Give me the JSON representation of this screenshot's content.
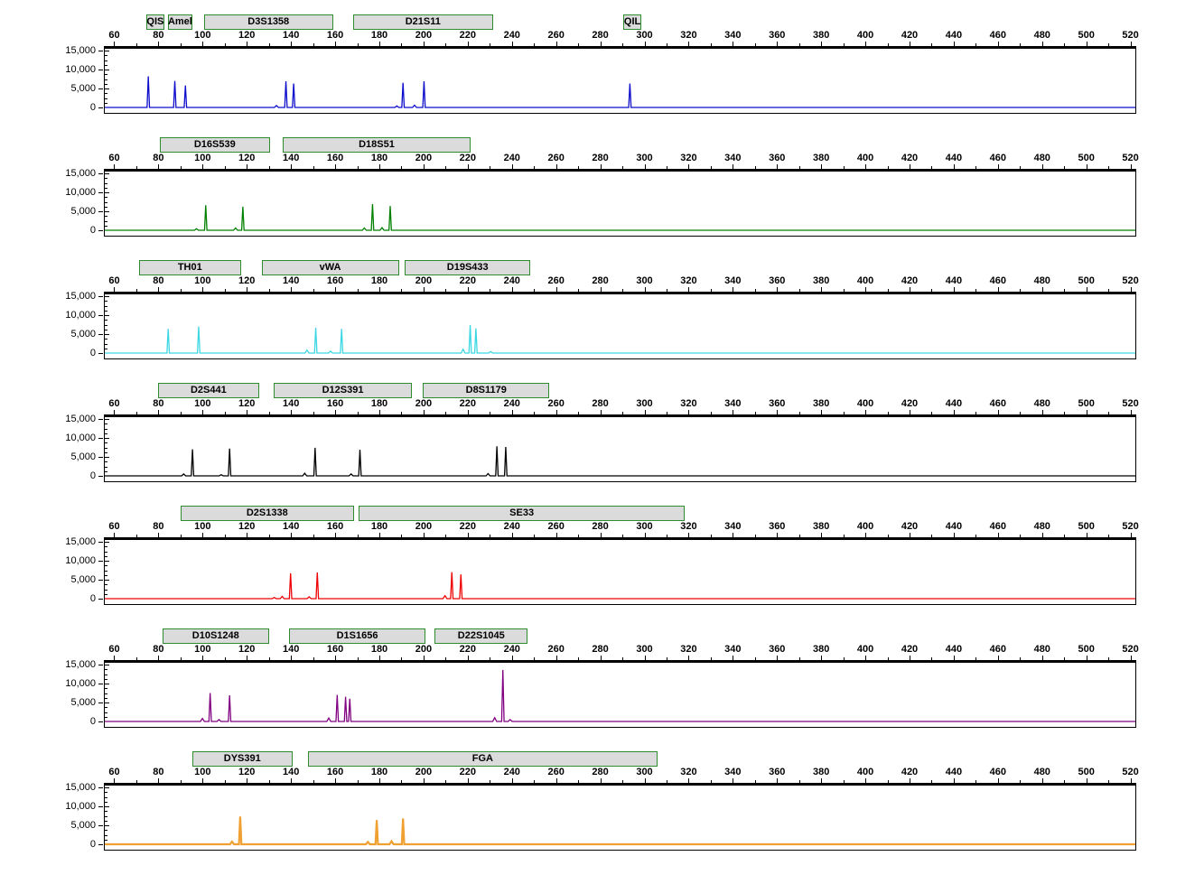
{
  "chart_data": {
    "type": "line",
    "subtype": "STR-electropherogram",
    "title": "",
    "grid": false,
    "x_axis": {
      "min": 55.3,
      "max": 521.8,
      "tick_values": [
        60,
        80,
        100,
        120,
        140,
        160,
        180,
        200,
        220,
        240,
        260,
        280,
        300,
        320,
        340,
        360,
        380,
        400,
        420,
        440,
        460,
        480,
        500,
        520
      ],
      "tick_labels": [
        "60",
        "80",
        "100",
        "120",
        "140",
        "160",
        "180",
        "200",
        "220",
        "240",
        "260",
        "280",
        "300",
        "320",
        "340",
        "360",
        "380",
        "400",
        "420",
        "440",
        "460",
        "480",
        "500",
        "520"
      ],
      "minor_tick_step": 10
    },
    "y_axis": {
      "min": 0,
      "max": 15000,
      "tick_values": [
        15000,
        10000,
        5000,
        0
      ],
      "tick_labels": [
        "15,000",
        "10,000",
        "5,000",
        "0"
      ],
      "minor_tick_step": 1250
    },
    "panels": [
      {
        "name": "blue-channel",
        "color": "#0d0dcb",
        "stroke_width": 1.3,
        "markers": [
          {
            "label": "QIS",
            "from": 74.5,
            "to": 81.8
          },
          {
            "label": "Amel",
            "from": 84.3,
            "to": 94.5
          },
          {
            "label": "D3S1358",
            "from": 100.6,
            "to": 158.2
          },
          {
            "label": "D21S11",
            "from": 168.0,
            "to": 230.7
          },
          {
            "label": "QIL",
            "from": 290.4,
            "to": 297.8
          }
        ],
        "peaks": [
          [
            75,
            8200
          ],
          [
            87,
            7000
          ],
          [
            91.8,
            5800
          ],
          [
            133,
            500
          ],
          [
            137.3,
            6900
          ],
          [
            140.8,
            6300
          ],
          [
            187.5,
            400
          ],
          [
            190.3,
            6500
          ],
          [
            195.5,
            600
          ],
          [
            199.8,
            6900
          ],
          [
            293,
            6300
          ]
        ]
      },
      {
        "name": "green-channel",
        "color": "#008000",
        "stroke_width": 1.3,
        "markers": [
          {
            "label": "D16S539",
            "from": 80.6,
            "to": 129.6
          },
          {
            "label": "D18S51",
            "from": 136.1,
            "to": 220.6
          }
        ],
        "peaks": [
          [
            96.8,
            400
          ],
          [
            101,
            6600
          ],
          [
            114.5,
            600
          ],
          [
            117.8,
            6200
          ],
          [
            172.8,
            600
          ],
          [
            176.5,
            6900
          ],
          [
            180.8,
            700
          ],
          [
            184.5,
            6400
          ]
        ]
      },
      {
        "name": "cyan-channel",
        "color": "#3bd7e3",
        "stroke_width": 1.3,
        "markers": [
          {
            "label": "TH01",
            "from": 71.2,
            "to": 116.5
          },
          {
            "label": "vWA",
            "from": 126.7,
            "to": 188.0
          },
          {
            "label": "D19S433",
            "from": 191.6,
            "to": 247.5
          }
        ],
        "peaks": [
          [
            84,
            6400
          ],
          [
            97.8,
            7000
          ],
          [
            146.8,
            800
          ],
          [
            150.8,
            6700
          ],
          [
            157.5,
            500
          ],
          [
            162.5,
            6400
          ],
          [
            217.5,
            1000
          ],
          [
            220.7,
            7400
          ],
          [
            223.3,
            6500
          ],
          [
            230,
            400
          ]
        ]
      },
      {
        "name": "black-channel",
        "color": "#000000",
        "stroke_width": 1.3,
        "markers": [
          {
            "label": "D2S441",
            "from": 79.8,
            "to": 124.7
          },
          {
            "label": "D12S391",
            "from": 132.0,
            "to": 194.1
          },
          {
            "label": "D8S1179",
            "from": 199.8,
            "to": 256.1
          }
        ],
        "peaks": [
          [
            91,
            500
          ],
          [
            95,
            7000
          ],
          [
            108,
            300
          ],
          [
            111.8,
            7200
          ],
          [
            145.8,
            700
          ],
          [
            150.5,
            7400
          ],
          [
            166.8,
            500
          ],
          [
            170.8,
            6900
          ],
          [
            228.8,
            600
          ],
          [
            232.8,
            7800
          ],
          [
            236.8,
            7600
          ]
        ]
      },
      {
        "name": "red-channel",
        "color": "#ee0000",
        "stroke_width": 1.3,
        "markers": [
          {
            "label": "D2S1338",
            "from": 90.0,
            "to": 167.6
          },
          {
            "label": "SE33",
            "from": 170.8,
            "to": 317.3
          }
        ],
        "peaks": [
          [
            132,
            300
          ],
          [
            135.6,
            600
          ],
          [
            139.4,
            6700
          ],
          [
            147.8,
            500
          ],
          [
            151.5,
            6900
          ],
          [
            209.3,
            800
          ],
          [
            212.4,
            7000
          ],
          [
            216.5,
            6400
          ]
        ]
      },
      {
        "name": "purple-channel",
        "color": "#800080",
        "stroke_width": 1.3,
        "markers": [
          {
            "label": "D10S1248",
            "from": 81.8,
            "to": 129.2
          },
          {
            "label": "D1S1656",
            "from": 139.0,
            "to": 200.2
          },
          {
            "label": "D22S1045",
            "from": 205.0,
            "to": 246.4
          }
        ],
        "peaks": [
          [
            99.5,
            800
          ],
          [
            103,
            7500
          ],
          [
            107,
            500
          ],
          [
            111.8,
            6900
          ],
          [
            156.7,
            900
          ],
          [
            160.5,
            7000
          ],
          [
            164.3,
            6500
          ],
          [
            166.2,
            6000
          ],
          [
            231.8,
            1000
          ],
          [
            235.5,
            13600
          ],
          [
            238.8,
            500
          ]
        ]
      },
      {
        "name": "orange-channel",
        "color": "#efa030",
        "stroke_width": 2.2,
        "markers": [
          {
            "label": "DYS391",
            "from": 95.3,
            "to": 139.8
          },
          {
            "label": "FGA",
            "from": 147.6,
            "to": 305.1
          }
        ],
        "peaks": [
          [
            112.9,
            700
          ],
          [
            116.6,
            7300
          ],
          [
            174.4,
            600
          ],
          [
            178.4,
            6400
          ],
          [
            185.1,
            800
          ],
          [
            190.3,
            6800
          ]
        ]
      }
    ]
  }
}
